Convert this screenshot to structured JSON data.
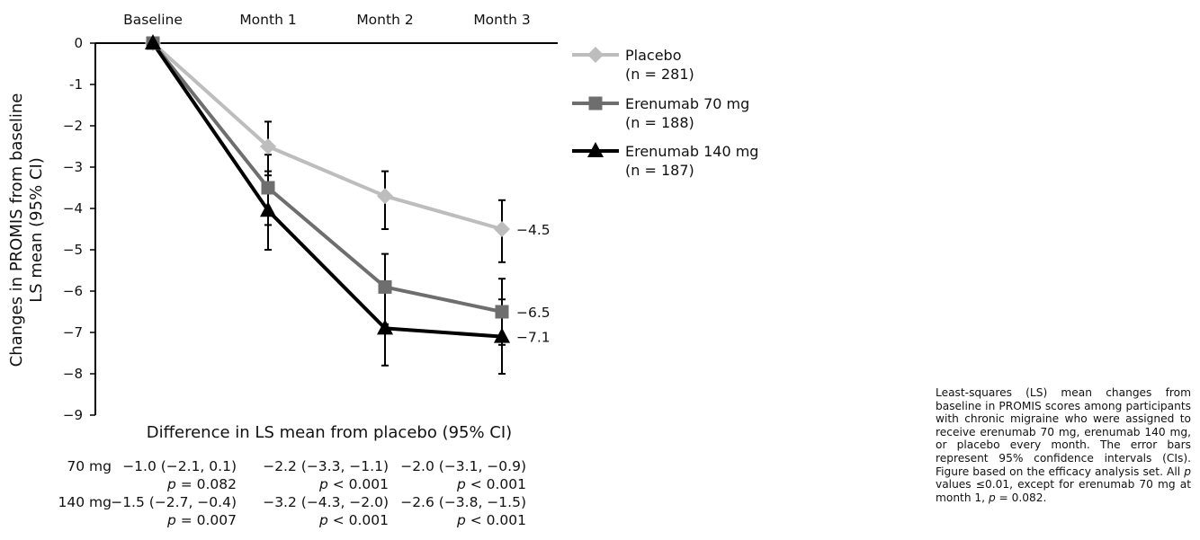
{
  "chart_data": {
    "type": "line",
    "categories": [
      "Baseline",
      "Month 1",
      "Month 2",
      "Month 3"
    ],
    "ylabel_line1": "Changes in PROMIS from baseline",
    "ylabel_line2": "LS mean (95% CI)",
    "yticks": [
      "0",
      "-1",
      "−2",
      "−3",
      "−4",
      "−5",
      "−6",
      "−7",
      "−8",
      "−9"
    ],
    "ylim": [
      -9,
      0
    ],
    "grid": false,
    "legend_position": "right",
    "series": [
      {
        "name": "Placebo",
        "n": "(n = 281)",
        "marker": "diamond",
        "color": "#bdbdbd",
        "values": [
          0,
          -2.5,
          -3.7,
          -4.5
        ],
        "ci_low": [
          0,
          -3.1,
          -4.5,
          -5.3
        ],
        "ci_high": [
          0,
          -1.9,
          -3.1,
          -3.8
        ],
        "end_label": "−4.5"
      },
      {
        "name": "Erenumab 70 mg",
        "n": "(n = 188)",
        "marker": "square",
        "color": "#6e6e6e",
        "values": [
          0,
          -3.5,
          -5.9,
          -6.5
        ],
        "ci_low": [
          0,
          -4.4,
          -6.8,
          -7.3
        ],
        "ci_high": [
          0,
          -2.7,
          -5.1,
          -5.7
        ],
        "end_label": "−6.5"
      },
      {
        "name": "Erenumab 140 mg",
        "n": "(n = 187)",
        "marker": "triangle",
        "color": "#000000",
        "values": [
          0,
          -4.05,
          -6.9,
          -7.1
        ],
        "ci_low": [
          0,
          -5.0,
          -7.8,
          -8.0
        ],
        "ci_high": [
          0,
          -3.2,
          -6.0,
          -6.2
        ],
        "end_label": "−7.1"
      }
    ],
    "difference_table": {
      "title": "Difference in LS mean from placebo (95% CI)",
      "rows": [
        {
          "label": "70 mg",
          "cells": [
            {
              "estimate": "−1.0 (−2.1, 0.1)",
              "p": "= 0.082"
            },
            {
              "estimate": "−2.2 (−3.3, −1.1)",
              "p": "< 0.001"
            },
            {
              "estimate": "−2.0 (−3.1, −0.9)",
              "p": "< 0.001"
            }
          ]
        },
        {
          "label": "140 mg",
          "cells": [
            {
              "estimate": "−1.5 (−2.7, −0.4)",
              "p": "= 0.007"
            },
            {
              "estimate": "−3.2 (−4.3, −2.0)",
              "p": "< 0.001"
            },
            {
              "estimate": "−2.6 (−3.8, −1.5)",
              "p": "< 0.001"
            }
          ]
        }
      ]
    }
  },
  "caption": {
    "part1": "Least-squares (LS) mean changes from baseline in PROMIS scores among participants with chronic migraine who were assigned to receive erenumab 70 mg, erenumab 140 mg, or placebo every month. The error bars represent 95% confidence intervals (CIs). Figure based on the efficacy analysis set. All ",
    "p_symbol": "p",
    "part2": " values ≤0.01, except for erenumab 70 mg at month 1, ",
    "part3": " = 0.082."
  }
}
